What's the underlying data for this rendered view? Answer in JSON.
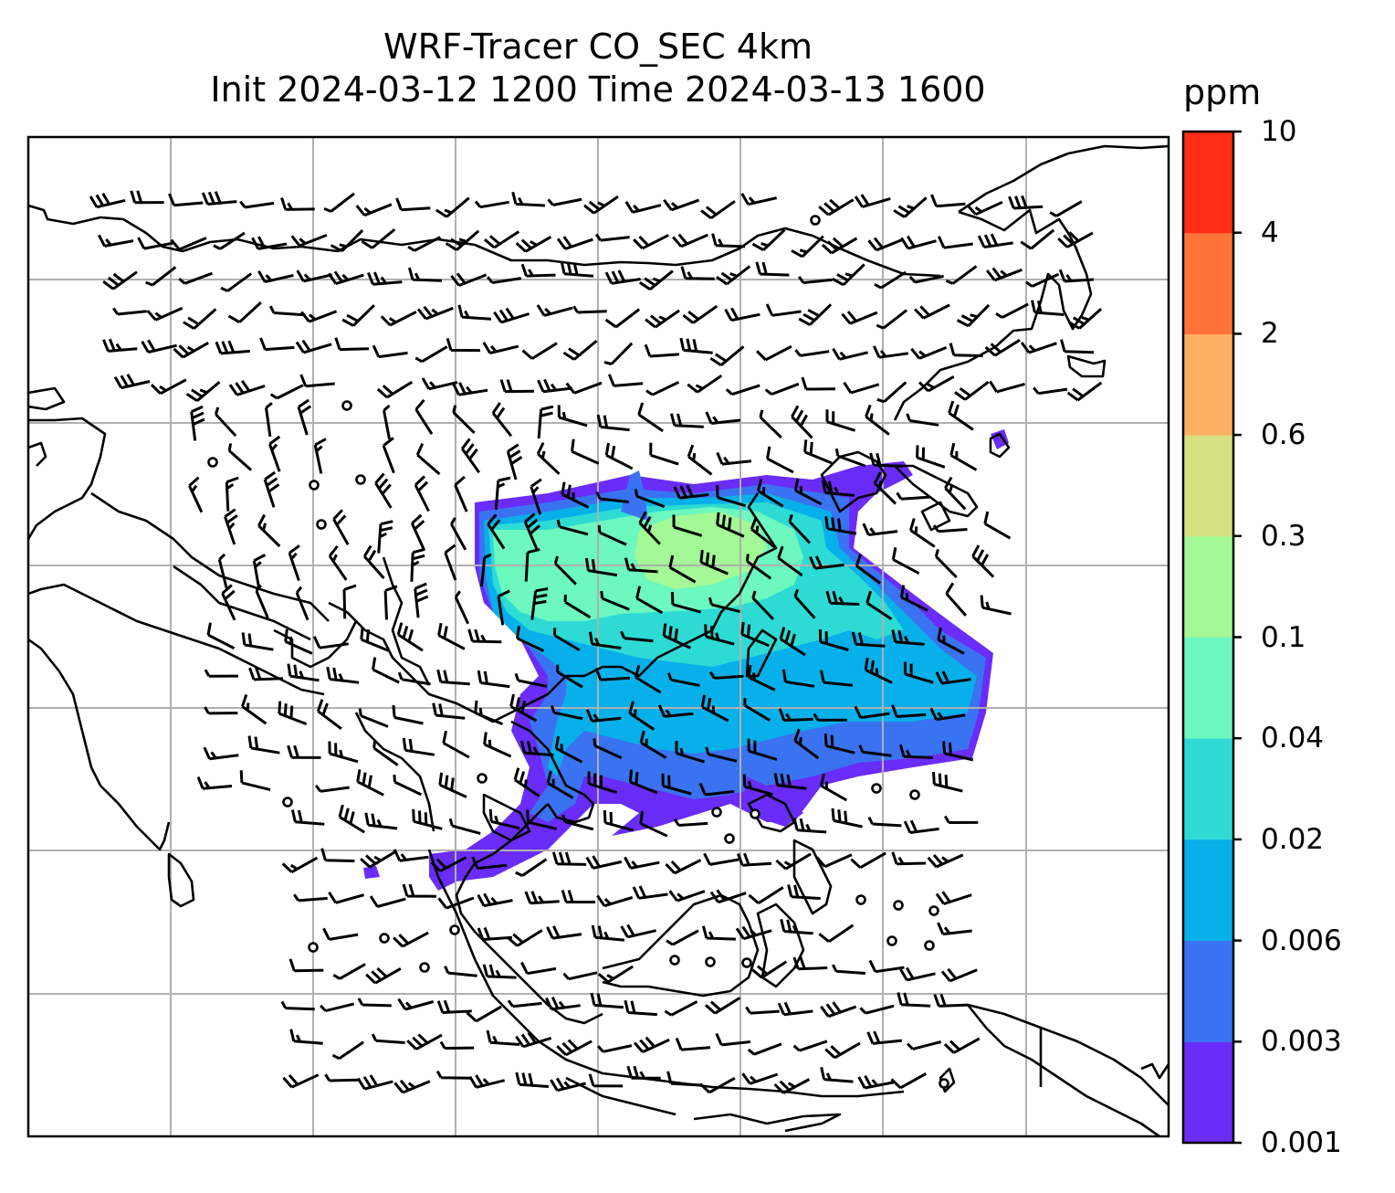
{
  "title": {
    "line1": "WRF-Tracer CO_SEC 4km",
    "line2": "Init 2024-03-12 1200 Time 2024-03-13 1600"
  },
  "colorbar": {
    "unit": "ppm",
    "levels": [
      "0.001",
      "0.003",
      "0.006",
      "0.02",
      "0.04",
      "0.1",
      "0.3",
      "0.6",
      "2",
      "4",
      "10"
    ],
    "colors": [
      "#6a2cf8",
      "#3a73f2",
      "#07b0ea",
      "#2ddbd4",
      "#6cf8be",
      "#a2f996",
      "#d5e081",
      "#fdaf62",
      "#ff7338",
      "#ff2d14"
    ]
  },
  "map": {
    "tracer_field": "CO_SEC",
    "wind_symbol": "wind-barb",
    "calm_symbol": "circle",
    "gridlines": true,
    "coastline_color": "#000000",
    "grid_color": "#b0b0b0"
  }
}
